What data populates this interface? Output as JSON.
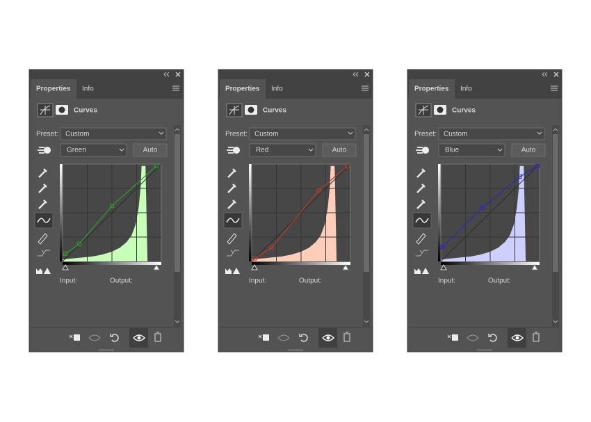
{
  "panels": [
    {
      "tabs": [
        "Properties",
        "Info"
      ],
      "title": "Curves",
      "preset_label": "Preset:",
      "preset": "Custom",
      "channel": "Green",
      "auto": "Auto",
      "input_label": "Input:",
      "output_label": "Output:"
    },
    {
      "tabs": [
        "Properties",
        "Info"
      ],
      "title": "Curves",
      "preset_label": "Preset:",
      "preset": "Custom",
      "channel": "Red",
      "auto": "Auto",
      "input_label": "Input:",
      "output_label": "Output:"
    },
    {
      "tabs": [
        "Properties",
        "Info"
      ],
      "title": "Curves",
      "preset_label": "Preset:",
      "preset": "Custom",
      "channel": "Blue",
      "auto": "Auto",
      "input_label": "Input:",
      "output_label": "Output:"
    }
  ]
}
